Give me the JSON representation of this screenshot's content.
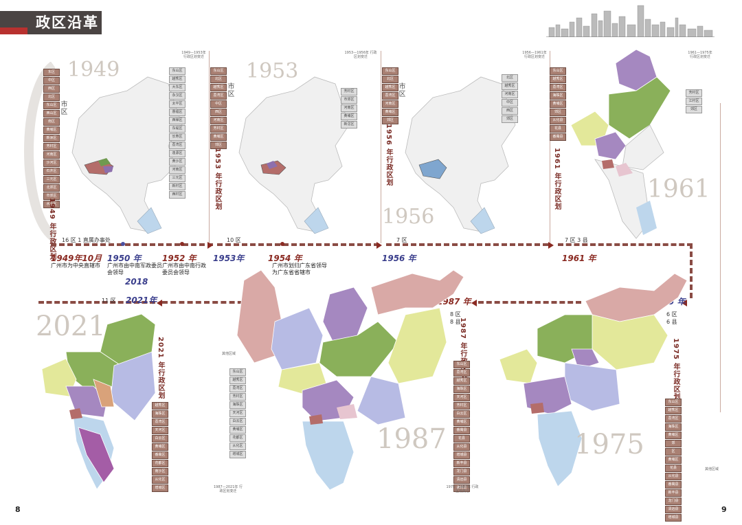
{
  "header": {
    "title": "政区沿革"
  },
  "pages": {
    "left": "8",
    "right": "9"
  },
  "years_big": {
    "y1949": "1949",
    "y1953": "1953",
    "y1956": "1956",
    "y1961": "1961",
    "y2021": "2021",
    "y1987": "1987",
    "y1975": "1975"
  },
  "vertical_labels": {
    "v1949": "1949 年行政区划",
    "v1953": "1953 年行政区划",
    "v1956": "1956 年行政区划",
    "v1961": "1961 年行政区划",
    "v2021": "2021 年行政区划",
    "v1987": "1987 年行政区划",
    "v1975": "1975 年行政区划",
    "city_district": "市区"
  },
  "captions": {
    "c1949_1953": "1949—1953年 行政区划变迁",
    "c1953_1956": "1953—1956年 行政区划变迁",
    "c1956_1961": "1956—1961年 行政区划变迁",
    "c1961_1975": "1961—1975年 行政区划变迁",
    "c1975_1987": "1975—1987年 行政区划变迁",
    "c1987_2021": "1987—2021年 行政区划变迁",
    "other": "其他区域"
  },
  "timeline_top": [
    {
      "year": "1949年10月",
      "note": "广州市为中央直辖市",
      "count": "16 区 1 直属办事处"
    },
    {
      "year": "1950 年",
      "note": "广州市由中南军政委员会领导"
    },
    {
      "year": "1952 年",
      "note": "广州市由中南行政委员会领导"
    },
    {
      "year": "1953年",
      "count": "10 区"
    },
    {
      "year": "1954 年",
      "note": "广州市划归广东省领导为广东省省辖市"
    },
    {
      "year": "1956 年",
      "count": "7 区"
    },
    {
      "year": "1961 年",
      "count": "7 区 3 县"
    }
  ],
  "timeline_bottom": [
    {
      "year": "2018"
    },
    {
      "year": "2021年",
      "count": "11 区"
    },
    {
      "year": "1987 年",
      "count": "8 区 8 县"
    },
    {
      "year": "1975 年",
      "count": "6 区 6 县"
    }
  ],
  "lists": {
    "l1949": [
      "东区",
      "中区",
      "西区",
      "北区",
      "东山区",
      "西山区",
      "南区",
      "黄埔区",
      "新洲区",
      "芳村区",
      "河南区",
      "沙河区",
      "石井区",
      "三元区",
      "北郊区",
      "市郊区",
      "水上区"
    ],
    "l1953a": [
      "东山区",
      "越秀区",
      "大东区",
      "永汉区",
      "太平区",
      "惠福区",
      "西禅区",
      "东堤区",
      "长寿区",
      "荔湾区",
      "逢源区",
      "黄沙区",
      "河南区",
      "三元区",
      "新村区",
      "西村区"
    ],
    "l1953b": [
      "东山区",
      "北区",
      "越秀区",
      "荔湾区",
      "中区",
      "西区",
      "河南区",
      "芳村区",
      "黄埔区",
      "郊区"
    ],
    "l1956": [
      "东山区",
      "北区",
      "越秀区",
      "荔湾区",
      "河南区",
      "黄埔区",
      "郊区"
    ],
    "l1956b": [
      "芳村区",
      "市郊区",
      "河南区",
      "黄埔区",
      "新滘区"
    ],
    "l1961a": [
      "北区",
      "越秀区",
      "河南区",
      "中区",
      "西区",
      "郊区"
    ],
    "l1961b": [
      "东山区",
      "越秀区",
      "荔湾区",
      "海珠区",
      "黄埔区",
      "郊区",
      "从化县",
      "花县",
      "番禺县"
    ],
    "l1961c": [
      "芳村区",
      "江村区",
      "郊区"
    ],
    "l1975": [
      "东山区",
      "越秀区",
      "荔湾区",
      "海珠区",
      "黄埔区",
      "郊",
      "区",
      "黄埔区",
      "花县",
      "从化县",
      "番禺县",
      "新丰县",
      "龙门县",
      "清远县",
      "增城县"
    ],
    "l1987": [
      "东山区",
      "荔湾区",
      "越秀区",
      "海珠区",
      "天河区",
      "芳村区",
      "白云区",
      "黄埔区",
      "番禺县",
      "花县",
      "从化县",
      "增城县",
      "新丰县",
      "龙门县",
      "清远县",
      "佛冈县"
    ],
    "l2021": [
      "越秀区",
      "海珠区",
      "荔湾区",
      "天河区",
      "白云区",
      "黄埔区",
      "番禺区",
      "花都区",
      "南沙区",
      "从化区",
      "增城区"
    ],
    "l2021b": [
      "东山区",
      "越秀区",
      "荔湾区",
      "芳村区",
      "海珠区",
      "天河区",
      "白云区",
      "黄埔区",
      "花都区",
      "从化区",
      "增城区"
    ]
  },
  "colors": {
    "brown": "#8a2a22",
    "blue": "#3a3e8c",
    "list": "#a98073",
    "dash": "#8a4b44"
  }
}
